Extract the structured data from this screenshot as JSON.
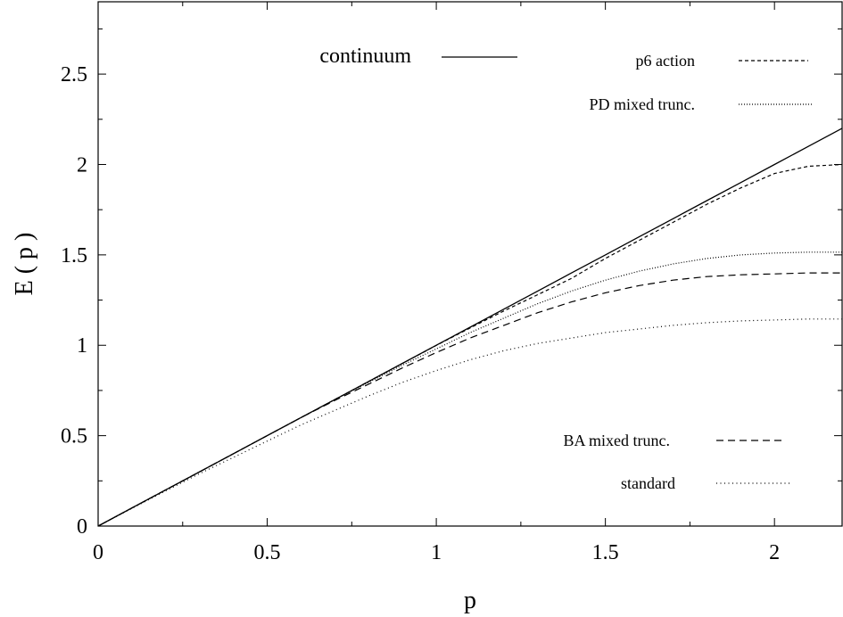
{
  "chart_data": {
    "type": "line",
    "title": "",
    "xlabel": "p",
    "ylabel": "E ( p )",
    "xlim": [
      0,
      2.2
    ],
    "ylim": [
      0,
      2.9
    ],
    "xticks": [
      "0",
      "0.5",
      "1",
      "1.5",
      "2"
    ],
    "yticks": [
      "0",
      "0.5",
      "1",
      "1.5",
      "2",
      "2.5"
    ],
    "grid": false,
    "legend_position": "top-right and bottom-right",
    "x": [
      0,
      0.1,
      0.2,
      0.3,
      0.4,
      0.5,
      0.6,
      0.7,
      0.8,
      0.9,
      1.0,
      1.1,
      1.2,
      1.3,
      1.4,
      1.5,
      1.6,
      1.7,
      1.8,
      1.9,
      2.0,
      2.1,
      2.2
    ],
    "series": [
      {
        "name": "continuum",
        "style": "solid",
        "values": [
          0,
          0.1,
          0.2,
          0.3,
          0.4,
          0.5,
          0.6,
          0.7,
          0.8,
          0.9,
          1.0,
          1.1,
          1.2,
          1.3,
          1.4,
          1.5,
          1.6,
          1.7,
          1.8,
          1.9,
          2.0,
          2.1,
          2.2
        ]
      },
      {
        "name": "p6 action",
        "style": "dashed-short",
        "values": [
          0,
          0.1,
          0.2,
          0.3,
          0.4,
          0.5,
          0.6,
          0.7,
          0.8,
          0.9,
          0.999,
          1.096,
          1.19,
          1.28,
          1.37,
          1.48,
          1.58,
          1.68,
          1.78,
          1.87,
          1.95,
          1.99,
          2.0
        ]
      },
      {
        "name": "PD mixed trunc.",
        "style": "dotted",
        "values": [
          0,
          0.1,
          0.2,
          0.3,
          0.4,
          0.5,
          0.6,
          0.7,
          0.795,
          0.89,
          0.98,
          1.07,
          1.15,
          1.23,
          1.3,
          1.36,
          1.41,
          1.45,
          1.48,
          1.5,
          1.51,
          1.515,
          1.515
        ]
      },
      {
        "name": "BA mixed trunc.",
        "style": "dashed",
        "values": [
          0,
          0.1,
          0.2,
          0.3,
          0.4,
          0.5,
          0.6,
          0.695,
          0.785,
          0.875,
          0.96,
          1.04,
          1.11,
          1.18,
          1.24,
          1.29,
          1.33,
          1.36,
          1.38,
          1.39,
          1.395,
          1.4,
          1.4
        ]
      },
      {
        "name": "standard",
        "style": "dotted-sparse",
        "values": [
          0,
          0.098,
          0.195,
          0.29,
          0.38,
          0.47,
          0.56,
          0.64,
          0.72,
          0.795,
          0.86,
          0.92,
          0.97,
          1.01,
          1.04,
          1.07,
          1.09,
          1.11,
          1.125,
          1.135,
          1.14,
          1.145,
          1.145
        ]
      }
    ]
  },
  "legend_top": [
    {
      "label": "continuum",
      "style": "solid"
    },
    {
      "label": "p6 action",
      "style": "dashed-short"
    },
    {
      "label": "PD mixed trunc.",
      "style": "dotted"
    }
  ],
  "legend_bottom": [
    {
      "label": "BA mixed trunc.",
      "style": "dashed"
    },
    {
      "label": "standard",
      "style": "dotted-sparse"
    }
  ]
}
